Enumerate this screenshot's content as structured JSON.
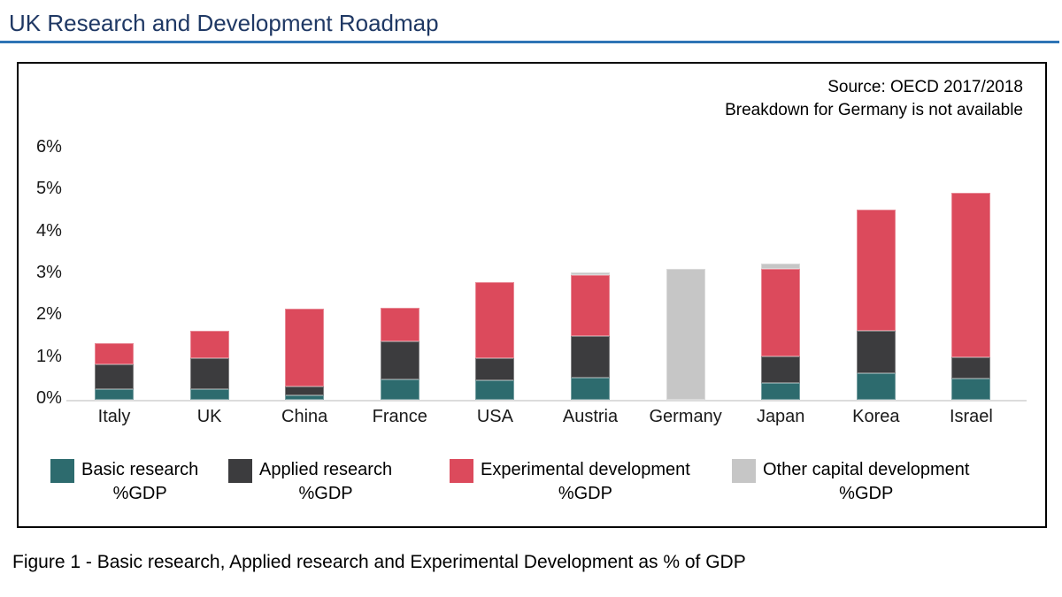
{
  "page": {
    "title": "UK Research and Development Roadmap",
    "caption": "Figure 1 - Basic research, Applied research and Experimental Development as % of GDP"
  },
  "chart_data": {
    "type": "bar",
    "stacked": true,
    "source": [
      "Source: OECD 2017/2018",
      "Breakdown for Germany is not available"
    ],
    "categories": [
      "Italy",
      "UK",
      "China",
      "France",
      "USA",
      "Austria",
      "Germany",
      "Japan",
      "Korea",
      "Israel"
    ],
    "series": [
      {
        "name": "Basic research %GDP",
        "color": "#2d6b6e",
        "values": [
          0.25,
          0.25,
          0.1,
          0.48,
          0.47,
          0.52,
          0,
          0.4,
          0.64,
          0.5
        ]
      },
      {
        "name": "Applied research %GDP",
        "color": "#3c3c3e",
        "values": [
          0.6,
          0.75,
          0.22,
          0.92,
          0.53,
          1.0,
          0,
          0.63,
          1.0,
          0.52
        ]
      },
      {
        "name": "Experimental development %GDP",
        "color": "#dc4a5c",
        "values": [
          0.5,
          0.65,
          1.85,
          0.8,
          1.82,
          1.46,
          0,
          2.1,
          2.91,
          3.93
        ]
      },
      {
        "name": "Other capital development %GDP",
        "color": "#c6c6c6",
        "values": [
          0,
          0,
          0,
          0,
          0,
          0.07,
          3.13,
          0.13,
          0,
          0
        ]
      }
    ],
    "ylim": [
      0,
      6
    ],
    "y_ticks": [
      "0%",
      "1%",
      "2%",
      "3%",
      "4%",
      "5%",
      "6%"
    ],
    "grid": false,
    "legend_position": "bottom",
    "legend": [
      {
        "label": "Basic research",
        "sublabel": "%GDP",
        "color": "#2d6b6e"
      },
      {
        "label": "Applied research",
        "sublabel": "%GDP",
        "color": "#3c3c3e"
      },
      {
        "label": "Experimental development",
        "sublabel": "%GDP",
        "color": "#dc4a5c"
      },
      {
        "label": "Other capital development",
        "sublabel": "%GDP",
        "color": "#c6c6c6"
      }
    ]
  }
}
